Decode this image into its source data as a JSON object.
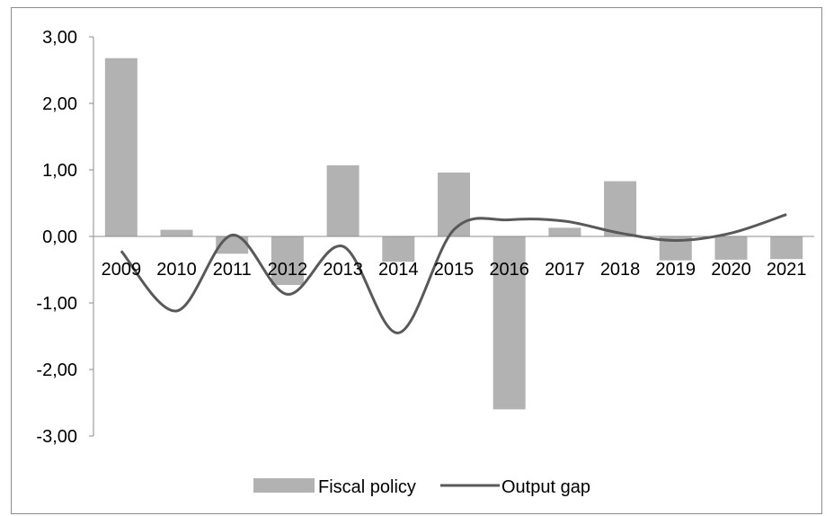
{
  "chart_data": {
    "type": "bar",
    "title": "",
    "xlabel": "",
    "ylabel": "",
    "ylim": [
      -3,
      3
    ],
    "ytick_step": 1,
    "ytick_labels": [
      "3,00",
      "2,00",
      "1,00",
      "0,00",
      "-1,00",
      "-2,00",
      "-3,00"
    ],
    "categories": [
      "2009",
      "2010",
      "2011",
      "2012",
      "2013",
      "2014",
      "2015",
      "2016",
      "2017",
      "2018",
      "2019",
      "2020",
      "2021"
    ],
    "series": [
      {
        "name": "Fiscal policy",
        "type": "bar",
        "color": "#b2b2b2",
        "values": [
          2.68,
          0.1,
          -0.26,
          -0.73,
          1.07,
          -0.38,
          0.96,
          -2.6,
          0.13,
          0.83,
          -0.36,
          -0.35,
          -0.34
        ]
      },
      {
        "name": "Output gap",
        "type": "line",
        "smooth": true,
        "color": "#595959",
        "values": [
          -0.22,
          -1.12,
          0.02,
          -0.87,
          -0.15,
          -1.45,
          0.1,
          0.25,
          0.23,
          0.05,
          -0.06,
          0.05,
          0.33
        ]
      }
    ],
    "grid": false,
    "legend_position": "bottom"
  }
}
